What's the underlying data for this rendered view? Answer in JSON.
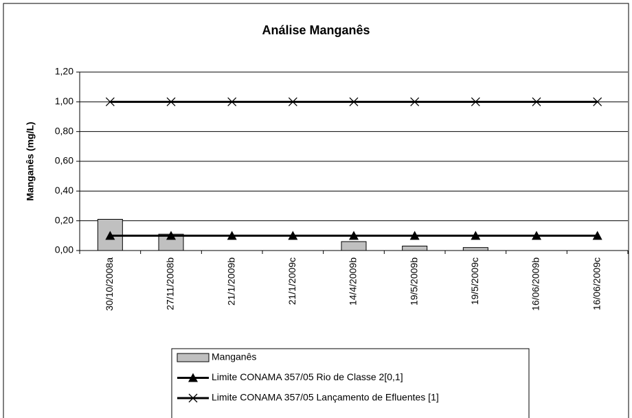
{
  "chart_data": {
    "type": "bar",
    "title": "Análise Manganês",
    "y_label": "Manganês (mg/L)",
    "categories": [
      "30/10/2008a",
      "27/11/2008b",
      "21/1/2009b",
      "21/1/2009c",
      "14/4/2009b",
      "19/5/2009b",
      "19/5/2009c",
      "16/06/2009b",
      "16/06/2009c"
    ],
    "series": [
      {
        "name": "Manganês",
        "type": "bar",
        "color": "#c0c0c0",
        "values": [
          0.21,
          0.11,
          0,
          0,
          0.06,
          0.03,
          0.02,
          0,
          0
        ]
      },
      {
        "name": "Limite CONAMA 357/05 Rio de Classe 2[0,1]",
        "type": "line",
        "marker": "triangle",
        "color": "#000000",
        "values": [
          0.1,
          0.1,
          0.1,
          0.1,
          0.1,
          0.1,
          0.1,
          0.1,
          0.1
        ]
      },
      {
        "name": "Limite CONAMA 357/05 Lançamento de Efluentes [1]",
        "type": "line",
        "marker": "x",
        "color": "#000000",
        "values": [
          1,
          1,
          1,
          1,
          1,
          1,
          1,
          1,
          1
        ]
      }
    ],
    "ylim": [
      0,
      1.2
    ],
    "yticks": [
      {
        "value": 0,
        "label": "0,00"
      },
      {
        "value": 0.2,
        "label": "0,20"
      },
      {
        "value": 0.4,
        "label": "0,40"
      },
      {
        "value": 0.6,
        "label": "0,60"
      },
      {
        "value": 0.8,
        "label": "0,80"
      },
      {
        "value": 1,
        "label": "1,00"
      },
      {
        "value": 1.2,
        "label": "1,20"
      }
    ],
    "grid": true,
    "legend": "bottom"
  }
}
